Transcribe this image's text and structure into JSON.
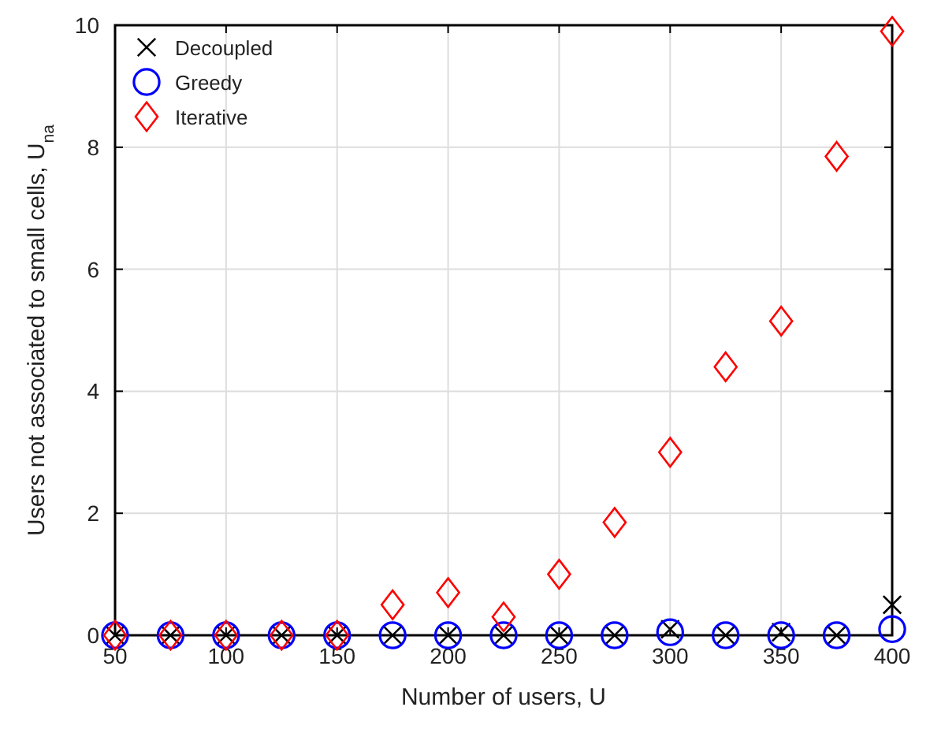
{
  "chart_data": {
    "type": "scatter",
    "xlabel": "Number of users, U",
    "ylabel": "Users not associated to small cells, U$_{na}$",
    "x": [
      50,
      75,
      100,
      125,
      150,
      175,
      200,
      225,
      250,
      275,
      300,
      325,
      350,
      375,
      400
    ],
    "xlim": [
      50,
      400
    ],
    "xticks": [
      50,
      100,
      150,
      200,
      250,
      300,
      350,
      400
    ],
    "ylim": [
      0,
      10
    ],
    "yticks": [
      0,
      2,
      4,
      6,
      8,
      10
    ],
    "grid": true,
    "legend": "top left",
    "series": [
      {
        "name": "Decoupled",
        "color": "#000000",
        "marker": "cross",
        "values": [
          0,
          0,
          0,
          0,
          0,
          0,
          0,
          0,
          0,
          0,
          0.1,
          0,
          0.05,
          0,
          0.5
        ]
      },
      {
        "name": "Greedy",
        "color": "#0000ff",
        "marker": "circle",
        "values": [
          0,
          0,
          0,
          0,
          0,
          0,
          0,
          0,
          0,
          0,
          0.05,
          0,
          0,
          0,
          0.1
        ]
      },
      {
        "name": "Iterative",
        "color": "#ff0000",
        "marker": "diamond",
        "values": [
          0,
          0,
          0,
          0,
          0,
          0.5,
          0.7,
          0.3,
          1.0,
          1.85,
          3.0,
          4.4,
          5.15,
          7.85,
          9.9
        ]
      }
    ]
  }
}
